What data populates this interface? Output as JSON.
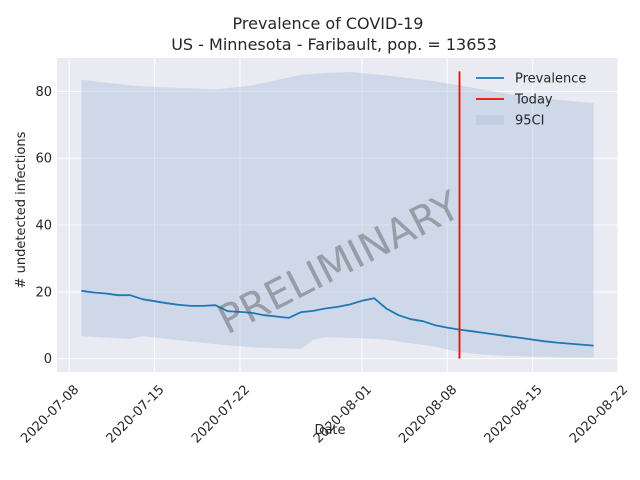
{
  "chart_data": {
    "type": "line",
    "title": "Prevalence of COVID-19",
    "subtitle": "US - Minnesota - Faribault, pop. = 13653",
    "xlabel": "Date",
    "ylabel": "# undetected infections",
    "x_start": "2020-07-09",
    "xlim": [
      "2020-07-07",
      "2020-08-22"
    ],
    "ylim": [
      -4,
      90
    ],
    "x_ticks": [
      "2020-07-08",
      "2020-07-15",
      "2020-07-22",
      "2020-08-01",
      "2020-08-08",
      "2020-08-15",
      "2020-08-22"
    ],
    "y_ticks": [
      0,
      20,
      40,
      60,
      80
    ],
    "series": [
      {
        "name": "Prevalence",
        "color": "#1f77b4",
        "x": [
          "2020-07-09",
          "2020-07-10",
          "2020-07-11",
          "2020-07-12",
          "2020-07-13",
          "2020-07-14",
          "2020-07-15",
          "2020-07-16",
          "2020-07-17",
          "2020-07-18",
          "2020-07-19",
          "2020-07-20",
          "2020-07-21",
          "2020-07-22",
          "2020-07-23",
          "2020-07-24",
          "2020-07-25",
          "2020-07-26",
          "2020-07-27",
          "2020-07-28",
          "2020-07-29",
          "2020-07-30",
          "2020-07-31",
          "2020-08-01",
          "2020-08-02",
          "2020-08-03",
          "2020-08-04",
          "2020-08-05",
          "2020-08-06",
          "2020-08-07",
          "2020-08-08",
          "2020-08-09",
          "2020-08-10",
          "2020-08-11",
          "2020-08-12",
          "2020-08-13",
          "2020-08-14",
          "2020-08-15",
          "2020-08-16",
          "2020-08-17",
          "2020-08-18",
          "2020-08-19",
          "2020-08-20"
        ],
        "y": [
          20.3,
          19.8,
          19.5,
          19.0,
          19.0,
          17.8,
          17.2,
          16.6,
          16.1,
          15.8,
          15.8,
          16.0,
          14.2,
          14.0,
          13.7,
          13.0,
          12.6,
          12.2,
          13.9,
          14.3,
          15.0,
          15.5,
          16.2,
          17.3,
          18.1,
          15.0,
          13.0,
          11.8,
          11.2,
          10.0,
          9.3,
          8.7,
          8.2,
          7.7,
          7.2,
          6.7,
          6.2,
          5.7,
          5.2,
          4.8,
          4.5,
          4.2,
          3.9
        ]
      },
      {
        "name": "Today",
        "color": "#ff0000",
        "x": [
          "2020-08-09",
          "2020-08-09"
        ],
        "y": [
          0,
          86
        ]
      }
    ],
    "band": {
      "name": "95CI",
      "color": "#b0c4de",
      "x": [
        "2020-07-09",
        "2020-07-13",
        "2020-07-14",
        "2020-07-20",
        "2020-07-23",
        "2020-07-27",
        "2020-07-28",
        "2020-07-29",
        "2020-07-31",
        "2020-08-01",
        "2020-08-03",
        "2020-08-05",
        "2020-08-07",
        "2020-08-09",
        "2020-08-11",
        "2020-08-13",
        "2020-08-15",
        "2020-08-17",
        "2020-08-20"
      ],
      "upper": [
        83.5,
        81.8,
        81.5,
        80.6,
        81.8,
        85.0,
        85.2,
        85.5,
        85.8,
        85.5,
        84.8,
        83.9,
        83.0,
        81.8,
        80.5,
        79.3,
        78.3,
        77.5,
        76.5
      ],
      "lower": [
        6.7,
        5.9,
        6.7,
        4.3,
        3.4,
        2.9,
        5.6,
        6.4,
        6.2,
        6.1,
        5.7,
        4.6,
        3.6,
        1.9,
        1.2,
        0.8,
        0.6,
        0.4,
        0.3
      ]
    },
    "legend": "top-right",
    "grid": true,
    "watermark": "PRELIMINARY"
  }
}
